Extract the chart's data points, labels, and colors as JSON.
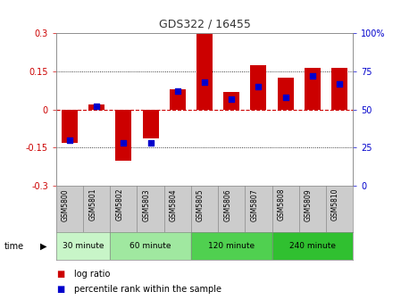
{
  "title": "GDS322 / 16455",
  "samples": [
    "GSM5800",
    "GSM5801",
    "GSM5802",
    "GSM5803",
    "GSM5804",
    "GSM5805",
    "GSM5806",
    "GSM5807",
    "GSM5808",
    "GSM5809",
    "GSM5810"
  ],
  "log_ratio": [
    -0.13,
    0.02,
    -0.2,
    -0.115,
    0.08,
    0.295,
    0.07,
    0.175,
    0.125,
    0.165,
    0.165
  ],
  "percentile": [
    30,
    52,
    28,
    28,
    62,
    68,
    57,
    65,
    58,
    72,
    67
  ],
  "ylim": [
    -0.3,
    0.3
  ],
  "yticks_left": [
    -0.3,
    -0.15,
    0,
    0.15,
    0.3
  ],
  "yticks_right_val": [
    0,
    25,
    50,
    75,
    100
  ],
  "groups": [
    {
      "label": "30 minute",
      "start": 0,
      "end": 1,
      "color": "#c8f5c8"
    },
    {
      "label": "60 minute",
      "start": 2,
      "end": 4,
      "color": "#a0e8a0"
    },
    {
      "label": "120 minute",
      "start": 5,
      "end": 7,
      "color": "#50d050"
    },
    {
      "label": "240 minute",
      "start": 8,
      "end": 10,
      "color": "#30c030"
    }
  ],
  "bar_color": "#cc0000",
  "dot_color": "#0000cc",
  "time_label": "time",
  "legend_log": "log ratio",
  "legend_pct": "percentile rank within the sample",
  "title_color": "#333333",
  "left_axis_color": "#cc0000",
  "right_axis_color": "#0000cc",
  "zero_line_color": "#cc0000",
  "sample_bg_color": "#cccccc"
}
